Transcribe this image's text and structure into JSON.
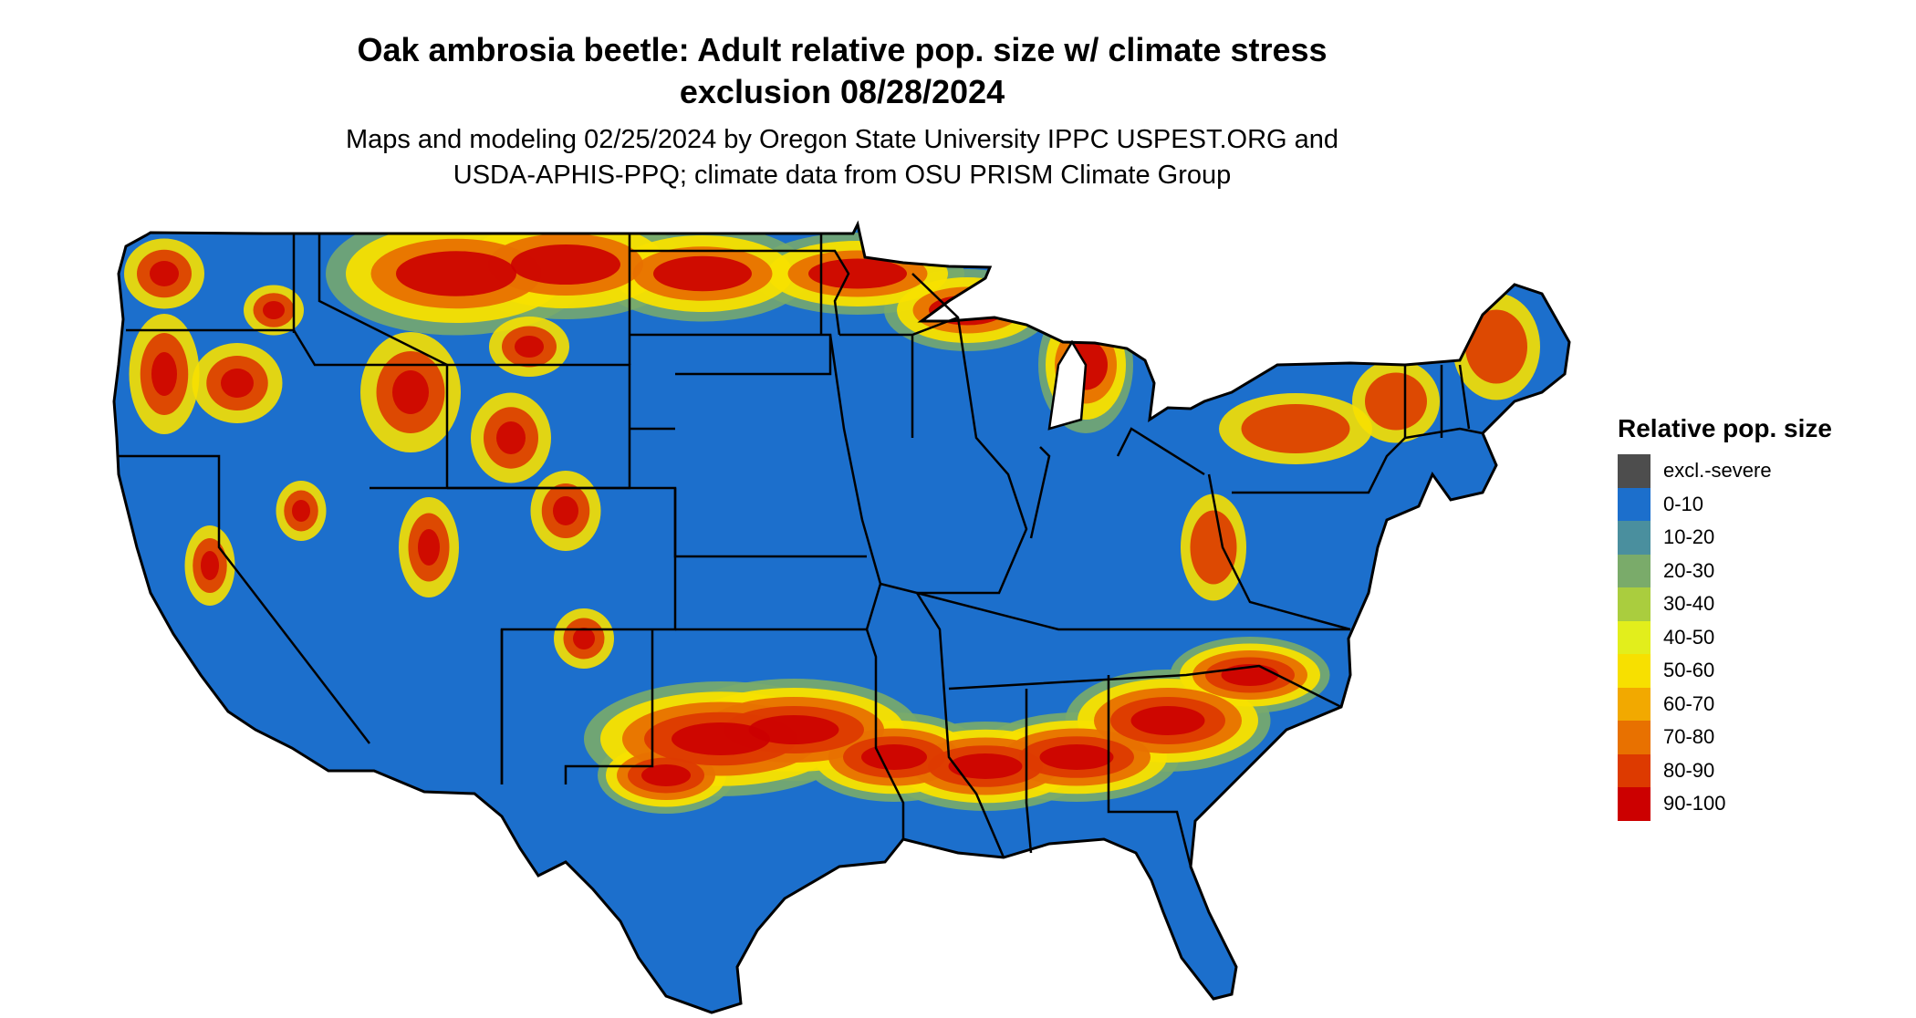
{
  "title_line1": "Oak ambrosia beetle: Adult relative pop. size w/ climate stress",
  "title_line2": "exclusion 08/28/2024",
  "subtitle_line1": "Maps and modeling 02/25/2024 by Oregon State University IPPC USPEST.ORG and",
  "subtitle_line2": "USDA-APHIS-PPQ; climate data from OSU PRISM Climate Group",
  "legend": {
    "title": "Relative pop. size",
    "items": [
      {
        "label": "excl.-severe",
        "color": "#4d4d4d"
      },
      {
        "label": "0-10",
        "color": "#1c6fcc"
      },
      {
        "label": "10-20",
        "color": "#4a8f9e"
      },
      {
        "label": "20-30",
        "color": "#7aab6a"
      },
      {
        "label": "30-40",
        "color": "#aacd3e"
      },
      {
        "label": "40-50",
        "color": "#e2ee1c"
      },
      {
        "label": "50-60",
        "color": "#f7e000"
      },
      {
        "label": "60-70",
        "color": "#f2a900"
      },
      {
        "label": "70-80",
        "color": "#e87100"
      },
      {
        "label": "80-90",
        "color": "#dd3a00"
      },
      {
        "label": "90-100",
        "color": "#cc0000"
      }
    ]
  }
}
